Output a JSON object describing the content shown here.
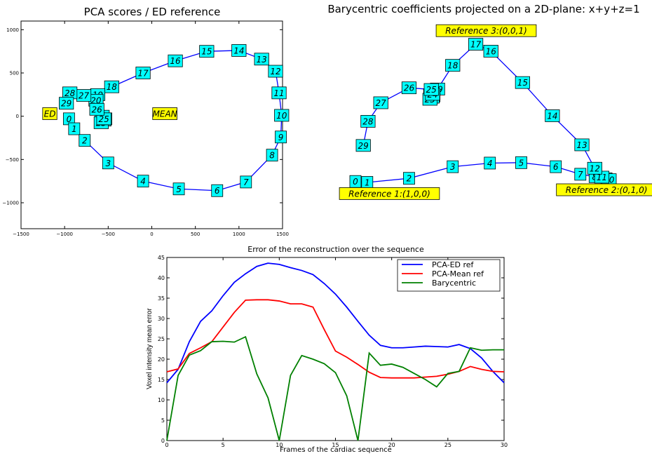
{
  "chart_data": [
    {
      "type": "scatter",
      "title": "PCA scores / ED reference",
      "xlim": [
        -1500,
        1500
      ],
      "ylim": [
        -1300,
        1100
      ],
      "xticks": [
        "−1500",
        "−1000",
        "−500",
        "0",
        "500",
        "1000",
        "1500"
      ],
      "yticks": [
        "−1000",
        "−500",
        "0",
        "500",
        "1000"
      ],
      "line_color": "#0000ff",
      "box_color": "#00ffff",
      "ref_color": "#ffff00",
      "points": [
        {
          "label": "0",
          "x": -950,
          "y": -30
        },
        {
          "label": "1",
          "x": -890,
          "y": -145
        },
        {
          "label": "2",
          "x": -770,
          "y": -280
        },
        {
          "label": "3",
          "x": -500,
          "y": -540
        },
        {
          "label": "4",
          "x": -100,
          "y": -750
        },
        {
          "label": "5",
          "x": 310,
          "y": -840
        },
        {
          "label": "6",
          "x": 750,
          "y": -860
        },
        {
          "label": "7",
          "x": 1080,
          "y": -760
        },
        {
          "label": "8",
          "x": 1380,
          "y": -450
        },
        {
          "label": "9",
          "x": 1480,
          "y": -240
        },
        {
          "label": "10",
          "x": 1490,
          "y": 10
        },
        {
          "label": "11",
          "x": 1460,
          "y": 270
        },
        {
          "label": "12",
          "x": 1420,
          "y": 520
        },
        {
          "label": "13",
          "x": 1260,
          "y": 660
        },
        {
          "label": "14",
          "x": 1000,
          "y": 760
        },
        {
          "label": "15",
          "x": 630,
          "y": 750
        },
        {
          "label": "16",
          "x": 270,
          "y": 640
        },
        {
          "label": "17",
          "x": -100,
          "y": 500
        },
        {
          "label": "18",
          "x": -460,
          "y": 340
        },
        {
          "label": "19",
          "x": -620,
          "y": 250
        },
        {
          "label": "20",
          "x": -640,
          "y": 185
        },
        {
          "label": "21",
          "x": -550,
          "y": -45
        },
        {
          "label": "22",
          "x": -570,
          "y": 0
        },
        {
          "label": "23",
          "x": -580,
          "y": -75
        },
        {
          "label": "24",
          "x": -540,
          "y": -30
        },
        {
          "label": "25",
          "x": -550,
          "y": -30
        },
        {
          "label": "26",
          "x": -630,
          "y": 80
        },
        {
          "label": "27",
          "x": -780,
          "y": 240
        },
        {
          "label": "28",
          "x": -940,
          "y": 270
        },
        {
          "label": "29",
          "x": -980,
          "y": 150
        }
      ],
      "references": [
        {
          "label": "ED",
          "x": -1170,
          "y": 30
        },
        {
          "label": "MEAN",
          "x": 150,
          "y": 30
        }
      ]
    },
    {
      "type": "scatter",
      "title": "Barycentric coefficients projected on a 2D-plane: x+y+z=1",
      "line_color": "#0000ff",
      "box_color": "#00ffff",
      "ref_color": "#ffff00",
      "points": [
        {
          "label": "0",
          "x": 0.0,
          "y": 0.02
        },
        {
          "label": "1",
          "x": 0.045,
          "y": 0.014
        },
        {
          "label": "2",
          "x": 0.205,
          "y": 0.041
        },
        {
          "label": "3",
          "x": 0.372,
          "y": 0.118
        },
        {
          "label": "4",
          "x": 0.514,
          "y": 0.142
        },
        {
          "label": "5",
          "x": 0.634,
          "y": 0.145
        },
        {
          "label": "6",
          "x": 0.766,
          "y": 0.118
        },
        {
          "label": "7",
          "x": 0.86,
          "y": 0.068
        },
        {
          "label": "8",
          "x": 0.915,
          "y": 0.052
        },
        {
          "label": "9",
          "x": 0.96,
          "y": 0.038
        },
        {
          "label": "10",
          "x": 0.97,
          "y": 0.032
        },
        {
          "label": "11",
          "x": 0.942,
          "y": 0.049
        },
        {
          "label": "12",
          "x": 0.915,
          "y": 0.108
        },
        {
          "label": "13",
          "x": 0.866,
          "y": 0.263
        },
        {
          "label": "14",
          "x": 0.753,
          "y": 0.456
        },
        {
          "label": "15",
          "x": 0.639,
          "y": 0.676
        },
        {
          "label": "16",
          "x": 0.518,
          "y": 0.884
        },
        {
          "label": "17",
          "x": 0.46,
          "y": 0.93
        },
        {
          "label": "18",
          "x": 0.372,
          "y": 0.79
        },
        {
          "label": "19",
          "x": 0.314,
          "y": 0.633
        },
        {
          "label": "20",
          "x": 0.288,
          "y": 0.595
        },
        {
          "label": "21",
          "x": 0.296,
          "y": 0.587
        },
        {
          "label": "22",
          "x": 0.293,
          "y": 0.579
        },
        {
          "label": "23",
          "x": 0.285,
          "y": 0.565
        },
        {
          "label": "24",
          "x": 0.295,
          "y": 0.598
        },
        {
          "label": "25",
          "x": 0.29,
          "y": 0.63
        },
        {
          "label": "26",
          "x": 0.205,
          "y": 0.641
        },
        {
          "label": "27",
          "x": 0.097,
          "y": 0.542
        },
        {
          "label": "28",
          "x": 0.048,
          "y": 0.419
        },
        {
          "label": "29",
          "x": 0.03,
          "y": 0.259
        }
      ],
      "references": [
        {
          "label": "Reference 1:(1,0,0)",
          "x": 0.13,
          "y": -0.06
        },
        {
          "label": "Reference 2:(0,1,0)",
          "x": 0.96,
          "y": -0.035
        },
        {
          "label": "Reference 3:(0,0,1)",
          "x": 0.5,
          "y": 1.02
        }
      ]
    },
    {
      "type": "line",
      "title": "Error of the reconstruction over the sequence",
      "xlabel": "Frames of the cardiac sequence",
      "ylabel": "Voxel intensity mean error",
      "xlim": [
        0,
        30
      ],
      "ylim": [
        0,
        45
      ],
      "xticks": [
        0,
        5,
        10,
        15,
        20,
        25,
        30
      ],
      "yticks": [
        0,
        5,
        10,
        15,
        20,
        25,
        30,
        35,
        40,
        45
      ],
      "legend": "top-right",
      "series": [
        {
          "name": "PCA-ED ref",
          "color": "#0000ff",
          "x": [
            0,
            1,
            2,
            3,
            4,
            5,
            6,
            7,
            8,
            9,
            10,
            11,
            12,
            13,
            14,
            15,
            16,
            17,
            18,
            19,
            20,
            21,
            22,
            23,
            24,
            25,
            26,
            27,
            28,
            29,
            30
          ],
          "values": [
            14.2,
            17.5,
            24.3,
            29.3,
            31.9,
            35.6,
            38.9,
            41.0,
            42.8,
            43.6,
            43.3,
            42.5,
            41.8,
            40.8,
            38.6,
            36.0,
            32.8,
            29.3,
            25.9,
            23.4,
            22.8,
            22.8,
            23.0,
            23.2,
            23.1,
            23.0,
            23.6,
            22.6,
            20.3,
            17.0,
            14.2
          ]
        },
        {
          "name": "PCA-Mean ref",
          "color": "#ff0000",
          "x": [
            0,
            1,
            2,
            3,
            4,
            5,
            6,
            7,
            8,
            9,
            10,
            11,
            12,
            13,
            14,
            15,
            16,
            17,
            18,
            19,
            20,
            21,
            22,
            23,
            24,
            25,
            26,
            27,
            28,
            29,
            30
          ],
          "values": [
            16.9,
            17.6,
            21.4,
            22.8,
            24.3,
            27.9,
            31.5,
            34.5,
            34.6,
            34.6,
            34.3,
            33.6,
            33.6,
            32.8,
            27.3,
            22.0,
            20.5,
            18.7,
            16.8,
            15.5,
            15.4,
            15.4,
            15.4,
            15.6,
            15.8,
            16.3,
            17.0,
            18.2,
            17.5,
            17.0,
            16.9
          ]
        },
        {
          "name": "Barycentric",
          "color": "#008000",
          "x": [
            0,
            1,
            2,
            3,
            4,
            5,
            6,
            7,
            8,
            9,
            10,
            11,
            12,
            13,
            14,
            15,
            16,
            17,
            18,
            19,
            20,
            21,
            22,
            23,
            24,
            25,
            26,
            27,
            28,
            29,
            30
          ],
          "values": [
            0,
            16.0,
            21.0,
            22.1,
            24.3,
            24.4,
            24.2,
            25.5,
            16.4,
            10.5,
            0,
            16.0,
            20.9,
            20.0,
            18.9,
            16.7,
            11.0,
            0,
            21.5,
            18.5,
            18.8,
            18.0,
            16.5,
            15.0,
            13.2,
            16.5,
            17.0,
            22.8,
            22.2,
            22.3,
            22.3
          ]
        }
      ]
    }
  ]
}
